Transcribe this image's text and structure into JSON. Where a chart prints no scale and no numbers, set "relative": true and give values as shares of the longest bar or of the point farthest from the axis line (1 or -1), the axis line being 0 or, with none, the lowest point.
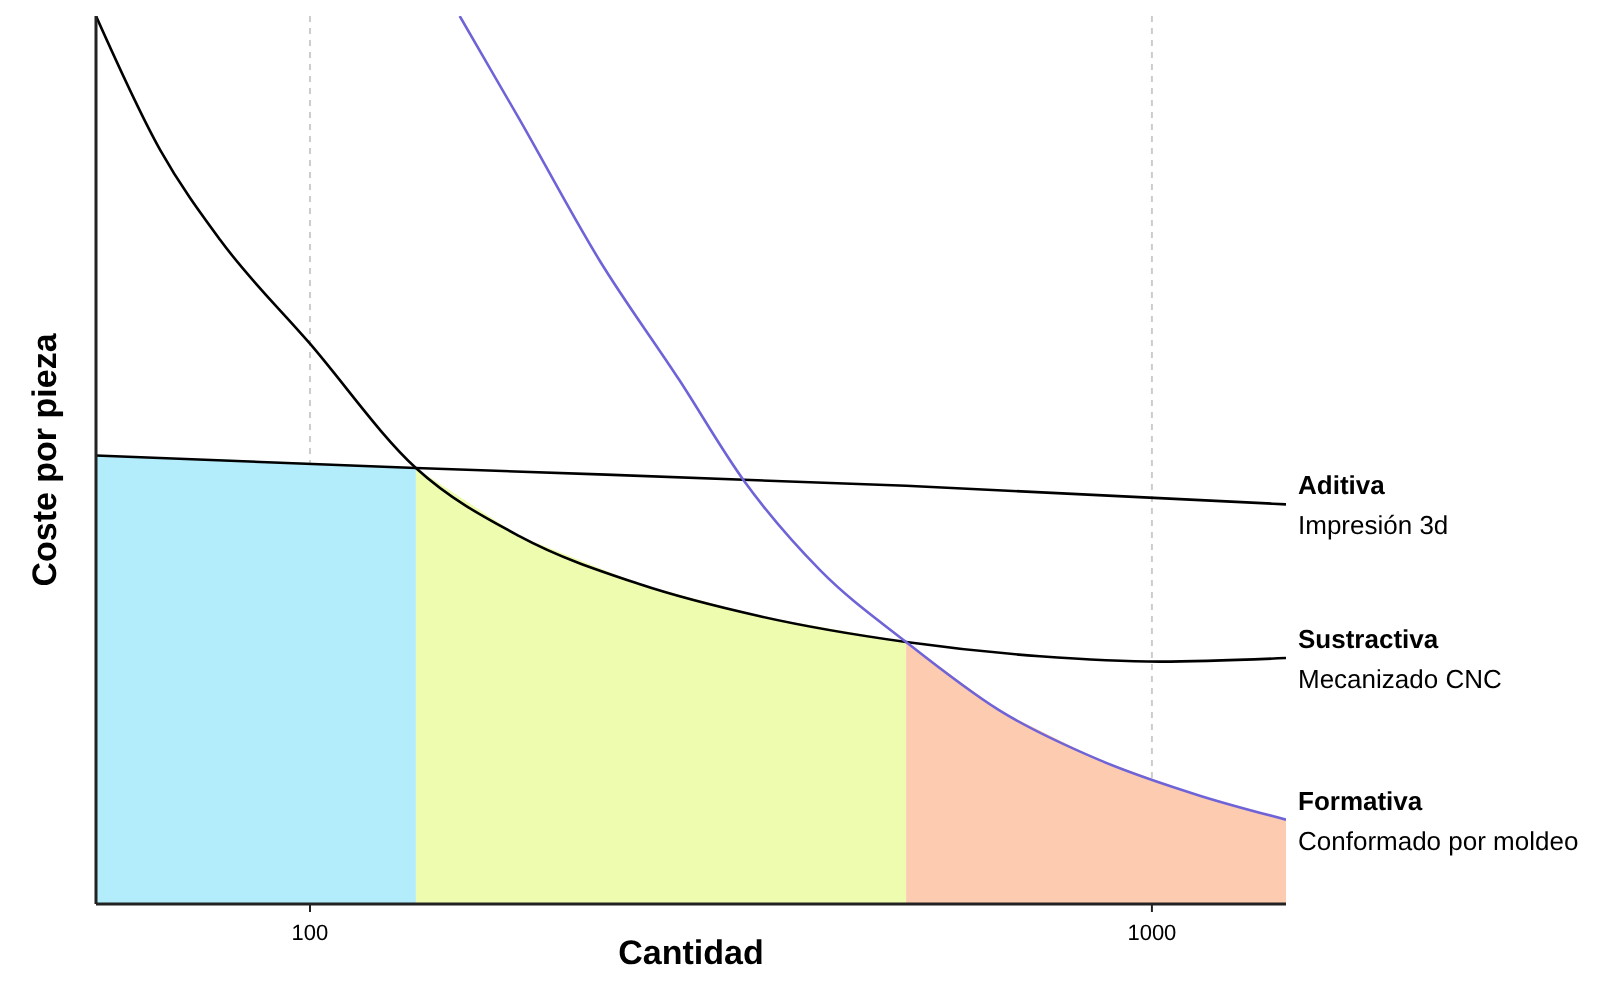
{
  "chart_data": {
    "type": "line",
    "xlabel": "Cantidad",
    "ylabel": "Coste por pieza",
    "log": "x",
    "relative": true,
    "grid": "x",
    "xlim": [
      55.7,
      1443
    ],
    "xticks": [
      100,
      1000
    ],
    "series": [
      {
        "type": "area",
        "color": "#b3ecfb",
        "x": [
          55.7,
          100,
          133.6
        ],
        "values": [
          0.505,
          0.497,
          0.491
        ]
      },
      {
        "type": "area",
        "color": "#eefcb0",
        "x": [
          133.6,
          177.5,
          246.6,
          342.3,
          510.6
        ],
        "values": [
          0.491,
          0.414,
          0.36,
          0.324,
          0.295
        ]
      },
      {
        "type": "area",
        "color": "#fccbb0",
        "x": [
          510.6,
          659,
          867,
          1140,
          1443
        ],
        "values": [
          0.295,
          0.218,
          0.162,
          0.122,
          0.095
        ]
      },
      {
        "name": "Aditiva",
        "color": "#000000",
        "x": [
          55.7,
          133.6,
          510.6,
          1443
        ],
        "values": [
          0.505,
          0.491,
          0.471,
          0.45
        ]
      },
      {
        "name": "Sustractiva",
        "color": "#000000",
        "x": [
          55.7,
          66.4,
          78.2,
          100,
          133.6,
          177.5,
          246.6,
          342.3,
          510.6,
          736,
          1022,
          1443
        ],
        "values": [
          1.0,
          0.849,
          0.748,
          0.631,
          0.491,
          0.414,
          0.36,
          0.324,
          0.295,
          0.279,
          0.273,
          0.277
        ]
      },
      {
        "name": "Formativa",
        "color": "#6f63d8",
        "x": [
          150.6,
          177.5,
          220.7,
          274.6,
          327.5,
          403.5,
          510.6,
          659,
          867,
          1140,
          1443
        ],
        "values": [
          1.0,
          0.883,
          0.725,
          0.59,
          0.477,
          0.376,
          0.295,
          0.218,
          0.162,
          0.122,
          0.095
        ]
      }
    ],
    "annotations": [
      "Impresión 3d",
      "Mecanizado CNC",
      "Conformado por moldeo"
    ]
  }
}
